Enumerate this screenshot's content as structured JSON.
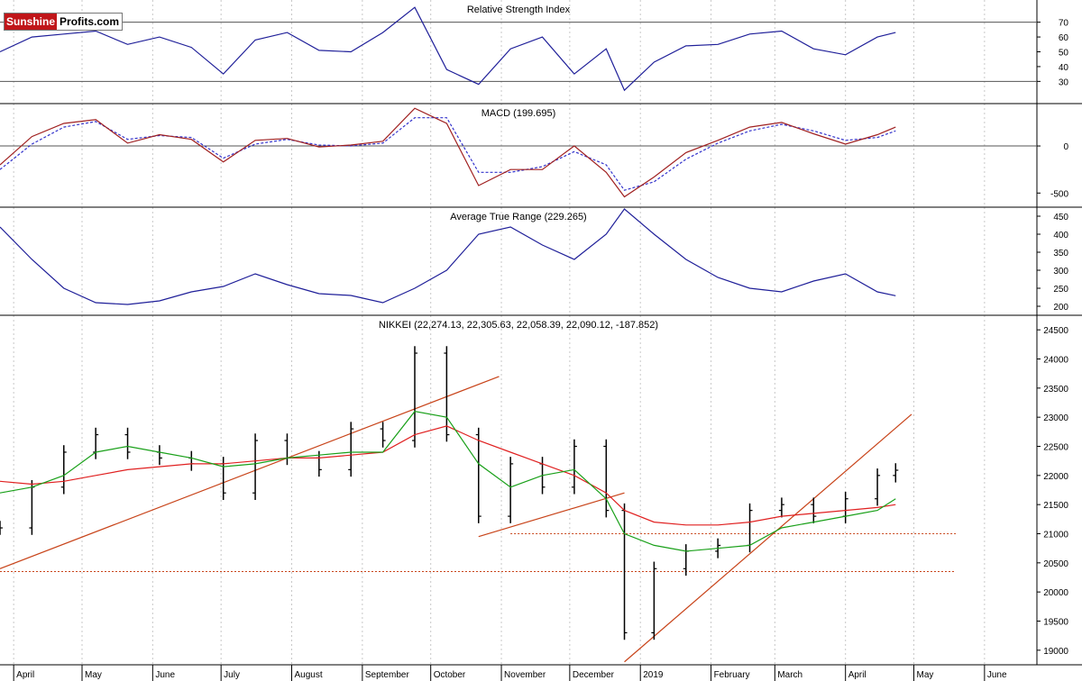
{
  "branding": {
    "logo_part1": "Sunshine",
    "logo_part2": "Profits.com"
  },
  "colors": {
    "rsi": "#1f1f99",
    "macd": "#a02020",
    "macd_signal": "#3333cc",
    "atr": "#1f1f99",
    "ma_short": "#19a019",
    "ma_long": "#e02020",
    "trendline": "#c8441a",
    "price_bars": "#000000"
  },
  "chart_data": [
    {
      "panel": "rsi",
      "type": "line",
      "title": "Relative Strength Index",
      "y_ticks": [
        30,
        40,
        50,
        60,
        70
      ],
      "ylim": [
        15,
        85
      ],
      "reference_lines": [
        30,
        70
      ],
      "x": [
        "2018-03-26",
        "2018-04-09",
        "2018-04-23",
        "2018-05-07",
        "2018-05-21",
        "2018-06-04",
        "2018-06-18",
        "2018-07-02",
        "2018-07-16",
        "2018-07-30",
        "2018-08-13",
        "2018-08-27",
        "2018-09-10",
        "2018-09-24",
        "2018-10-08",
        "2018-10-22",
        "2018-11-05",
        "2018-11-19",
        "2018-12-03",
        "2018-12-17",
        "2018-12-25",
        "2019-01-07",
        "2019-01-21",
        "2019-02-04",
        "2019-02-18",
        "2019-03-04",
        "2019-03-18",
        "2019-04-01",
        "2019-04-15",
        "2019-04-23"
      ],
      "values": [
        50,
        60,
        62,
        64,
        55,
        60,
        53,
        35,
        58,
        63,
        51,
        50,
        63,
        80,
        38,
        28,
        52,
        60,
        35,
        52,
        24,
        43,
        54,
        55,
        62,
        64,
        52,
        48,
        60,
        63
      ]
    },
    {
      "panel": "macd",
      "type": "line",
      "title": "MACD (199.695)",
      "y_ticks": [
        0,
        -500
      ],
      "ylim": [
        -650,
        450
      ],
      "reference_lines": [
        0
      ],
      "x": [
        "2018-03-26",
        "2018-04-09",
        "2018-04-23",
        "2018-05-07",
        "2018-05-21",
        "2018-06-04",
        "2018-06-18",
        "2018-07-02",
        "2018-07-16",
        "2018-07-30",
        "2018-08-13",
        "2018-08-27",
        "2018-09-10",
        "2018-09-24",
        "2018-10-08",
        "2018-10-22",
        "2018-11-05",
        "2018-11-19",
        "2018-12-03",
        "2018-12-17",
        "2018-12-25",
        "2019-01-07",
        "2019-01-21",
        "2019-02-04",
        "2019-02-18",
        "2019-03-04",
        "2019-03-18",
        "2019-04-01",
        "2019-04-15",
        "2019-04-23"
      ],
      "series": [
        {
          "name": "MACD",
          "values": [
            -200,
            100,
            240,
            280,
            30,
            120,
            70,
            -170,
            60,
            80,
            -10,
            10,
            50,
            400,
            240,
            -420,
            -250,
            -250,
            0,
            -280,
            -540,
            -330,
            -70,
            60,
            200,
            250,
            130,
            20,
            120,
            200
          ]
        },
        {
          "name": "Signal",
          "values": [
            -250,
            20,
            200,
            260,
            70,
            110,
            90,
            -130,
            20,
            70,
            10,
            0,
            30,
            300,
            300,
            -280,
            -280,
            -220,
            -60,
            -200,
            -470,
            -380,
            -140,
            30,
            160,
            230,
            160,
            60,
            90,
            160
          ]
        }
      ]
    },
    {
      "panel": "atr",
      "type": "line",
      "title": "Average True Range (229.265)",
      "y_ticks": [
        200,
        250,
        300,
        350,
        400,
        450
      ],
      "ylim": [
        175,
        475
      ],
      "x": [
        "2018-03-26",
        "2018-04-09",
        "2018-04-23",
        "2018-05-07",
        "2018-05-21",
        "2018-06-04",
        "2018-06-18",
        "2018-07-02",
        "2018-07-16",
        "2018-07-30",
        "2018-08-13",
        "2018-08-27",
        "2018-09-10",
        "2018-09-24",
        "2018-10-08",
        "2018-10-22",
        "2018-11-05",
        "2018-11-19",
        "2018-12-03",
        "2018-12-17",
        "2018-12-25",
        "2019-01-07",
        "2019-01-21",
        "2019-02-04",
        "2019-02-18",
        "2019-03-04",
        "2019-03-18",
        "2019-04-01",
        "2019-04-15",
        "2019-04-23"
      ],
      "values": [
        420,
        330,
        250,
        210,
        205,
        215,
        240,
        255,
        290,
        260,
        235,
        230,
        210,
        250,
        300,
        400,
        420,
        370,
        330,
        400,
        470,
        400,
        330,
        280,
        250,
        240,
        270,
        290,
        240,
        229.265
      ]
    },
    {
      "panel": "price",
      "type": "ohlc",
      "title": "NIKKEI (22,274.13, 22,305.63, 22,058.39, 22,090.12, -187.852)",
      "y_ticks": [
        19000,
        19500,
        20000,
        20500,
        21000,
        21500,
        22000,
        22500,
        23000,
        23500,
        24000,
        24500
      ],
      "ylim": [
        18750,
        24750
      ],
      "x_tick_labels": [
        "April",
        "May",
        "June",
        "July",
        "August",
        "September",
        "October",
        "November",
        "December",
        "2019",
        "February",
        "March",
        "April",
        "May",
        "June"
      ],
      "x": [
        "2018-03-26",
        "2018-04-09",
        "2018-04-23",
        "2018-05-07",
        "2018-05-21",
        "2018-06-04",
        "2018-06-18",
        "2018-07-02",
        "2018-07-16",
        "2018-07-30",
        "2018-08-13",
        "2018-08-27",
        "2018-09-10",
        "2018-09-24",
        "2018-10-08",
        "2018-10-22",
        "2018-11-05",
        "2018-11-19",
        "2018-12-03",
        "2018-12-17",
        "2018-12-25",
        "2019-01-07",
        "2019-01-21",
        "2019-02-04",
        "2019-02-18",
        "2019-03-04",
        "2019-03-18",
        "2019-04-01",
        "2019-04-15",
        "2019-04-23"
      ],
      "close": [
        21100,
        21800,
        22400,
        22700,
        22400,
        22300,
        22200,
        21700,
        22600,
        22300,
        22100,
        22800,
        22600,
        24100,
        22700,
        21300,
        22200,
        21800,
        22500,
        21400,
        19300,
        20400,
        20700,
        20800,
        21400,
        21500,
        21300,
        21600,
        22000,
        22090.12
      ],
      "ma_short": {
        "values": [
          21700,
          21800,
          22000,
          22400,
          22500,
          22400,
          22300,
          22150,
          22200,
          22300,
          22350,
          22400,
          22400,
          23100,
          23000,
          22200,
          21800,
          22000,
          22100,
          21600,
          21000,
          20800,
          20700,
          20750,
          20800,
          21100,
          21200,
          21300,
          21400,
          21600
        ]
      },
      "ma_long": {
        "values": [
          21900,
          21850,
          21900,
          22000,
          22100,
          22150,
          22200,
          22200,
          22250,
          22300,
          22300,
          22350,
          22400,
          22700,
          22850,
          22600,
          22400,
          22200,
          22000,
          21700,
          21400,
          21200,
          21150,
          21150,
          21200,
          21300,
          21350,
          21400,
          21450,
          21500
        ]
      },
      "trendlines": [
        {
          "from": [
            "2018-03-26",
            20400
          ],
          "to": [
            "2018-10-31",
            23700
          ]
        },
        {
          "from": [
            "2018-10-22",
            20950
          ],
          "to": [
            "2018-12-25",
            21700
          ]
        },
        {
          "from": [
            "2018-12-25",
            18800
          ],
          "to": [
            "2019-04-30",
            23050
          ]
        }
      ],
      "horizontal_levels": [
        21000,
        20350
      ]
    }
  ]
}
